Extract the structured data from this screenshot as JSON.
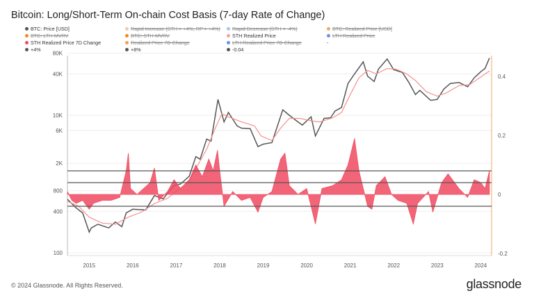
{
  "title": "Bitcoin: Long/Short-Term On-chain Cost Basis (7-day Rate of Change)",
  "copyright": "© 2024 Glassnode. All Rights Reserved.",
  "logo": "glassnode",
  "legend": [
    {
      "label": "BTC: Price [USD]",
      "color": "#555555",
      "active": true
    },
    {
      "label": "Rapid Increase (STH > +4%, RP > +4%)",
      "color": "#f4c8a8",
      "active": false
    },
    {
      "label": "Rapid Decrease (STH < -4%)",
      "color": "#a8c4f0",
      "active": false
    },
    {
      "label": "BTC: Realized Price [USD]",
      "color": "#f0a860",
      "active": false
    },
    {
      "label": "BTC: LTH-MVRV",
      "color": "#f08a20",
      "active": false
    },
    {
      "label": "BTC: STH-MVRV",
      "color": "#f08a20",
      "active": false
    },
    {
      "label": "STH Realized Price",
      "color": "#f8a0a0",
      "active": true
    },
    {
      "label": "LTH Realized Price",
      "color": "#7090e0",
      "active": false
    },
    {
      "label": "STH Realized Price 7D Change",
      "color": "#f04a60",
      "active": true
    },
    {
      "label": "Realized Price 7D Change",
      "color": "#f0a050",
      "active": false
    },
    {
      "label": "LTH Realized Price 7D Change",
      "color": "#7090e0",
      "active": false
    },
    {
      "label": "-",
      "color": "",
      "active": true
    },
    {
      "label": "+4%",
      "color": "#555555",
      "active": true
    },
    {
      "label": "+8%",
      "color": "#555555",
      "active": true
    },
    {
      "label": "-0.04",
      "color": "#555555",
      "active": true
    }
  ],
  "chart_data": {
    "type": "line",
    "title": "Bitcoin: Long/Short-Term On-chain Cost Basis (7-day Rate of Change)",
    "left_axis": {
      "scale": "log",
      "range": [
        100,
        80000
      ],
      "ticks": [
        "100",
        "400",
        "800",
        "2K",
        "6K",
        "10K",
        "40K",
        "80K"
      ],
      "tick_values": [
        100,
        400,
        800,
        2000,
        6000,
        10000,
        40000,
        80000
      ]
    },
    "right_axis": {
      "scale": "linear",
      "range": [
        -0.2,
        0.45
      ],
      "ticks": [
        "-0.2",
        "0",
        "0.2",
        "0.4"
      ],
      "tick_values": [
        -0.2,
        0,
        0.2,
        0.4
      ]
    },
    "x_axis": {
      "range": [
        2014.5,
        2024.25
      ],
      "ticks": [
        "2015",
        "2016",
        "2017",
        "2018",
        "2019",
        "2020",
        "2021",
        "2022",
        "2023",
        "2024"
      ]
    },
    "grid": true,
    "series": [
      {
        "name": "BTC: Price [USD]",
        "axis": "left",
        "color": "#555555",
        "points": [
          [
            2014.5,
            600
          ],
          [
            2014.7,
            450
          ],
          [
            2014.85,
            380
          ],
          [
            2015.0,
            200
          ],
          [
            2015.05,
            230
          ],
          [
            2015.2,
            260
          ],
          [
            2015.45,
            230
          ],
          [
            2015.6,
            280
          ],
          [
            2015.75,
            240
          ],
          [
            2015.85,
            380
          ],
          [
            2016.0,
            430
          ],
          [
            2016.3,
            420
          ],
          [
            2016.5,
            680
          ],
          [
            2016.7,
            610
          ],
          [
            2016.95,
            950
          ],
          [
            2017.1,
            1000
          ],
          [
            2017.3,
            1300
          ],
          [
            2017.45,
            2500
          ],
          [
            2017.55,
            2300
          ],
          [
            2017.7,
            4500
          ],
          [
            2017.8,
            4200
          ],
          [
            2017.96,
            17000
          ],
          [
            2018.1,
            8000
          ],
          [
            2018.2,
            11000
          ],
          [
            2018.4,
            7000
          ],
          [
            2018.5,
            6500
          ],
          [
            2018.7,
            6400
          ],
          [
            2018.88,
            3500
          ],
          [
            2019.0,
            3800
          ],
          [
            2019.2,
            4000
          ],
          [
            2019.45,
            12000
          ],
          [
            2019.6,
            10000
          ],
          [
            2019.8,
            8000
          ],
          [
            2019.9,
            7200
          ],
          [
            2020.1,
            9500
          ],
          [
            2020.2,
            5000
          ],
          [
            2020.4,
            9000
          ],
          [
            2020.55,
            9200
          ],
          [
            2020.65,
            11500
          ],
          [
            2020.8,
            13000
          ],
          [
            2020.95,
            29000
          ],
          [
            2021.1,
            40000
          ],
          [
            2021.3,
            60000
          ],
          [
            2021.4,
            37000
          ],
          [
            2021.55,
            31000
          ],
          [
            2021.65,
            47000
          ],
          [
            2021.85,
            66000
          ],
          [
            2022.0,
            46000
          ],
          [
            2022.2,
            42000
          ],
          [
            2022.35,
            30000
          ],
          [
            2022.5,
            20000
          ],
          [
            2022.6,
            23000
          ],
          [
            2022.85,
            16500
          ],
          [
            2023.0,
            17000
          ],
          [
            2023.15,
            24000
          ],
          [
            2023.3,
            29000
          ],
          [
            2023.5,
            30000
          ],
          [
            2023.7,
            26000
          ],
          [
            2023.85,
            35000
          ],
          [
            2024.0,
            43000
          ],
          [
            2024.1,
            48000
          ],
          [
            2024.2,
            68000
          ]
        ]
      },
      {
        "name": "STH Realized Price",
        "axis": "left",
        "color": "#f49090",
        "points": [
          [
            2014.5,
            560
          ],
          [
            2014.75,
            480
          ],
          [
            2015.0,
            330
          ],
          [
            2015.3,
            270
          ],
          [
            2015.6,
            260
          ],
          [
            2015.9,
            330
          ],
          [
            2016.2,
            390
          ],
          [
            2016.5,
            520
          ],
          [
            2016.8,
            620
          ],
          [
            2017.0,
            780
          ],
          [
            2017.3,
            1100
          ],
          [
            2017.5,
            1900
          ],
          [
            2017.7,
            3200
          ],
          [
            2017.9,
            6500
          ],
          [
            2018.05,
            10500
          ],
          [
            2018.2,
            9500
          ],
          [
            2018.5,
            8000
          ],
          [
            2018.8,
            7000
          ],
          [
            2018.95,
            5000
          ],
          [
            2019.2,
            4300
          ],
          [
            2019.4,
            6500
          ],
          [
            2019.6,
            9000
          ],
          [
            2019.85,
            9000
          ],
          [
            2020.1,
            8300
          ],
          [
            2020.3,
            8000
          ],
          [
            2020.6,
            9200
          ],
          [
            2020.8,
            11000
          ],
          [
            2021.0,
            20000
          ],
          [
            2021.2,
            35000
          ],
          [
            2021.4,
            45000
          ],
          [
            2021.6,
            40000
          ],
          [
            2021.85,
            48000
          ],
          [
            2022.05,
            47000
          ],
          [
            2022.3,
            40000
          ],
          [
            2022.5,
            32000
          ],
          [
            2022.75,
            22000
          ],
          [
            2023.0,
            19000
          ],
          [
            2023.2,
            21000
          ],
          [
            2023.5,
            27000
          ],
          [
            2023.75,
            28000
          ],
          [
            2024.0,
            36000
          ],
          [
            2024.2,
            44000
          ]
        ]
      },
      {
        "name": "STH Realized Price 7D Change",
        "axis": "right",
        "color": "#f04a60",
        "points": [
          [
            2014.5,
            0.01
          ],
          [
            2014.6,
            -0.02
          ],
          [
            2014.7,
            -0.03
          ],
          [
            2014.85,
            -0.02
          ],
          [
            2015.0,
            -0.05
          ],
          [
            2015.1,
            -0.03
          ],
          [
            2015.3,
            -0.02
          ],
          [
            2015.5,
            -0.02
          ],
          [
            2015.7,
            -0.01
          ],
          [
            2015.85,
            0.08
          ],
          [
            2015.9,
            0.14
          ],
          [
            2015.95,
            0.02
          ],
          [
            2016.1,
            0.0
          ],
          [
            2016.4,
            0.04
          ],
          [
            2016.5,
            0.09
          ],
          [
            2016.6,
            -0.02
          ],
          [
            2016.8,
            0.01
          ],
          [
            2016.95,
            0.05
          ],
          [
            2017.1,
            0.02
          ],
          [
            2017.3,
            0.05
          ],
          [
            2017.45,
            0.1
          ],
          [
            2017.6,
            0.06
          ],
          [
            2017.75,
            0.12
          ],
          [
            2017.85,
            0.08
          ],
          [
            2017.95,
            0.15
          ],
          [
            2018.0,
            0.08
          ],
          [
            2018.1,
            -0.04
          ],
          [
            2018.3,
            0.01
          ],
          [
            2018.5,
            -0.02
          ],
          [
            2018.7,
            -0.01
          ],
          [
            2018.88,
            -0.06
          ],
          [
            2019.0,
            -0.01
          ],
          [
            2019.2,
            0.01
          ],
          [
            2019.4,
            0.12
          ],
          [
            2019.5,
            0.14
          ],
          [
            2019.6,
            0.03
          ],
          [
            2019.8,
            0.0
          ],
          [
            2020.0,
            0.02
          ],
          [
            2020.2,
            -0.1
          ],
          [
            2020.35,
            0.02
          ],
          [
            2020.6,
            0.03
          ],
          [
            2020.8,
            0.05
          ],
          [
            2020.95,
            0.1
          ],
          [
            2021.0,
            0.13
          ],
          [
            2021.1,
            0.19
          ],
          [
            2021.2,
            0.08
          ],
          [
            2021.4,
            -0.04
          ],
          [
            2021.5,
            -0.05
          ],
          [
            2021.6,
            0.03
          ],
          [
            2021.8,
            0.06
          ],
          [
            2021.95,
            0.0
          ],
          [
            2022.1,
            -0.02
          ],
          [
            2022.3,
            -0.03
          ],
          [
            2022.45,
            -0.1
          ],
          [
            2022.55,
            -0.03
          ],
          [
            2022.8,
            0.01
          ],
          [
            2022.9,
            -0.06
          ],
          [
            2023.1,
            0.04
          ],
          [
            2023.25,
            0.07
          ],
          [
            2023.5,
            0.02
          ],
          [
            2023.7,
            -0.01
          ],
          [
            2023.85,
            0.05
          ],
          [
            2024.0,
            0.04
          ],
          [
            2024.1,
            0.02
          ],
          [
            2024.2,
            0.08
          ]
        ]
      },
      {
        "name": "+4%",
        "axis": "right",
        "color": "#555555",
        "points": [
          [
            2014.5,
            0.04
          ],
          [
            2024.25,
            0.04
          ]
        ]
      },
      {
        "name": "+8%",
        "axis": "right",
        "color": "#555555",
        "points": [
          [
            2014.5,
            0.08
          ],
          [
            2024.25,
            0.08
          ]
        ]
      },
      {
        "name": "-0.04",
        "axis": "right",
        "color": "#555555",
        "points": [
          [
            2014.5,
            -0.04
          ],
          [
            2024.25,
            -0.04
          ]
        ]
      }
    ]
  }
}
